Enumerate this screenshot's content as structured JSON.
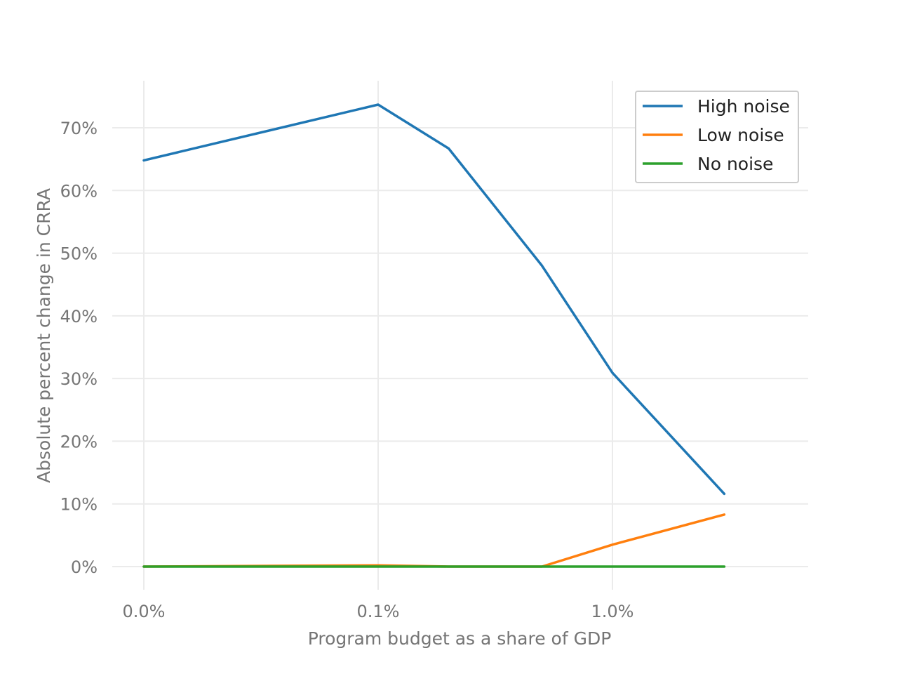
{
  "chart_data": {
    "type": "line",
    "title": "",
    "xlabel": "Program budget as a share of GDP",
    "ylabel": "Absolute percent change in CRRA",
    "x_scale": "symlog",
    "x_ticks": [
      {
        "value": 0.0,
        "label": "0.0%"
      },
      {
        "value": 0.1,
        "label": "0.1%"
      },
      {
        "value": 1.0,
        "label": "1.0%"
      }
    ],
    "x": [
      0.0,
      0.1,
      0.2,
      0.5,
      1.0,
      3.0
    ],
    "ylim": [
      -0.03,
      0.775
    ],
    "y_ticks": [
      {
        "value": 0.0,
        "label": "0%"
      },
      {
        "value": 0.1,
        "label": "10%"
      },
      {
        "value": 0.2,
        "label": "20%"
      },
      {
        "value": 0.3,
        "label": "30%"
      },
      {
        "value": 0.4,
        "label": "40%"
      },
      {
        "value": 0.5,
        "label": "50%"
      },
      {
        "value": 0.6,
        "label": "60%"
      },
      {
        "value": 0.7,
        "label": "70%"
      }
    ],
    "grid": true,
    "legend_position": "top-right",
    "series": [
      {
        "name": "High noise",
        "color": "#1f77b4",
        "values": [
          0.648,
          0.737,
          0.667,
          0.48,
          0.309,
          0.116
        ]
      },
      {
        "name": "Low noise",
        "color": "#ff7f0e",
        "values": [
          0.0,
          0.002,
          0.0,
          0.0,
          0.035,
          0.083
        ]
      },
      {
        "name": "No noise",
        "color": "#2ca02c",
        "values": [
          0.0,
          0.0,
          0.0,
          0.0,
          0.0,
          0.0
        ]
      }
    ]
  }
}
